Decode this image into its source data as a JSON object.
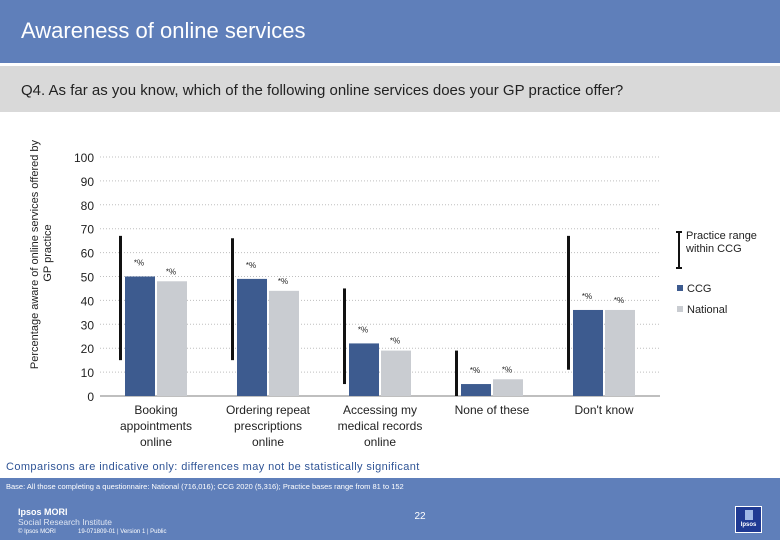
{
  "header": {
    "title": "Awareness of online services",
    "question": "Q4. As far as you know, which of the following online services does your GP practice offer?"
  },
  "colors": {
    "band": "#5f7fba",
    "question_band": "#d9d9d9",
    "ccg": "#3d5b8f",
    "national": "#c9ccd1",
    "range": "#111111",
    "grid": "#bfbfbf",
    "note": "#2f5496"
  },
  "chart_data": {
    "type": "bar",
    "ylabel": "Percentage aware of online services offered by GP practice",
    "xlabel": "",
    "ylim": [
      0,
      100
    ],
    "yticks": [
      0,
      10,
      20,
      30,
      40,
      50,
      60,
      70,
      80,
      90,
      100
    ],
    "categories": [
      "Booking appointments online",
      "Ordering repeat prescriptions online",
      "Accessing my medical records online",
      "None of these",
      "Don't know"
    ],
    "category_lines": [
      [
        "Booking",
        "appointments",
        "online"
      ],
      [
        "Ordering repeat",
        "prescriptions",
        "online"
      ],
      [
        "Accessing my",
        "medical records",
        "online"
      ],
      [
        "None of these"
      ],
      [
        "Don't know"
      ]
    ],
    "series": [
      {
        "name": "CCG",
        "color": "#3d5b8f",
        "values": [
          50,
          49,
          22,
          5,
          36
        ],
        "labels": [
          "*%",
          "*%",
          "*%",
          "*%",
          "*%"
        ]
      },
      {
        "name": "National",
        "color": "#c9ccd1",
        "values": [
          48,
          44,
          19,
          7,
          36
        ],
        "labels": [
          "*%",
          "*%",
          "*%",
          "*%",
          "*%"
        ]
      }
    ],
    "practice_range": [
      [
        15,
        67
      ],
      [
        15,
        66
      ],
      [
        5,
        45
      ],
      [
        0,
        19
      ],
      [
        11,
        67
      ]
    ],
    "legend": {
      "position": "right",
      "range_label_lines": [
        "Practice range",
        "within CCG"
      ],
      "items": [
        "CCG",
        "National"
      ]
    },
    "grid": true
  },
  "notes": {
    "comparison": "Comparisons are indicative only: differences may not be statistically significant",
    "base": "Base: All those completing a questionnaire: National (716,016); CCG 2020 (5,316); Practice bases range from 81 to 152"
  },
  "footer": {
    "logo_line1": "Ipsos MORI",
    "logo_line2": "Social Research Institute",
    "copyright": "© Ipsos MORI",
    "job_info": "19-071809-01 | Version 1 | Public",
    "page_number": "22"
  }
}
